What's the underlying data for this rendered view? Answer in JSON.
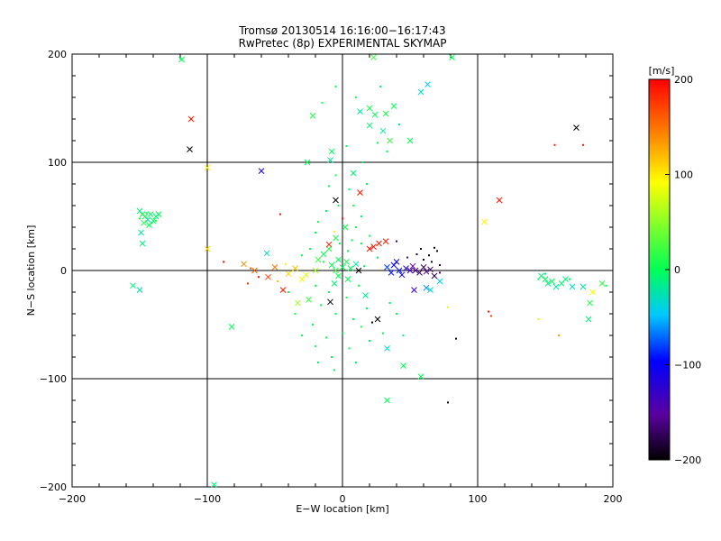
{
  "chart_data": {
    "type": "scatter",
    "title": "Tromsø 20130514  16:16:00−16:17:43",
    "subtitle": "RwPretec (8p) EXPERIMENTAL SKYMAP",
    "xlabel": "E−W location [km]",
    "ylabel": "N−S location [km]",
    "xlim": [
      -200,
      200
    ],
    "ylim": [
      -200,
      200
    ],
    "x_ticks": [
      -200,
      -100,
      0,
      100,
      200
    ],
    "y_ticks": [
      -200,
      -100,
      0,
      100,
      200
    ],
    "x_tick_labels": [
      "−200",
      "−100",
      "0",
      "100",
      "200"
    ],
    "y_tick_labels": [
      "−200",
      "−100",
      "0",
      "100",
      "200"
    ],
    "grid": true,
    "colorbar": {
      "label": "[m/s]",
      "min": -200,
      "max": 200,
      "ticks": [
        200,
        100,
        0,
        -100,
        -200
      ],
      "tick_labels": [
        "200",
        "100",
        "0",
        "−100",
        "−200"
      ],
      "colormap": [
        "#000000",
        "#5a00a0",
        "#0000ff",
        "#00c8ff",
        "#00ff55",
        "#ffff00",
        "#ff8000",
        "#ff0000"
      ]
    },
    "points": [
      {
        "x": -112,
        "y": 140,
        "v": 190,
        "m": "x"
      },
      {
        "x": -113,
        "y": 112,
        "v": -200,
        "m": "x"
      },
      {
        "x": -119,
        "y": 195,
        "v": 0,
        "m": "x"
      },
      {
        "x": -100,
        "y": 95,
        "v": 100,
        "m": "x"
      },
      {
        "x": -60,
        "y": 92,
        "v": -110,
        "m": "x"
      },
      {
        "x": -26,
        "y": 100,
        "v": 0,
        "m": "x"
      },
      {
        "x": -22,
        "y": 143,
        "v": 10,
        "m": "x"
      },
      {
        "x": 13,
        "y": 147,
        "v": -20,
        "m": "x"
      },
      {
        "x": 20,
        "y": 150,
        "v": 10,
        "m": "x"
      },
      {
        "x": 24,
        "y": 144,
        "v": 0,
        "m": "x"
      },
      {
        "x": 32,
        "y": 145,
        "v": 10,
        "m": "x"
      },
      {
        "x": 20,
        "y": 134,
        "v": -10,
        "m": "x"
      },
      {
        "x": 38,
        "y": 152,
        "v": 0,
        "m": "x"
      },
      {
        "x": 30,
        "y": 129,
        "v": -20,
        "m": "x"
      },
      {
        "x": 58,
        "y": 165,
        "v": -30,
        "m": "x"
      },
      {
        "x": 63,
        "y": 172,
        "v": -40,
        "m": "x"
      },
      {
        "x": 50,
        "y": 120,
        "v": 0,
        "m": "x"
      },
      {
        "x": 35,
        "y": 120,
        "v": 20,
        "m": "x"
      },
      {
        "x": 23,
        "y": 197,
        "v": 20,
        "m": "x"
      },
      {
        "x": 81,
        "y": 197,
        "v": 0,
        "m": "x"
      },
      {
        "x": -8,
        "y": 110,
        "v": 0,
        "m": "x"
      },
      {
        "x": -9,
        "y": 102,
        "v": -20,
        "m": "x"
      },
      {
        "x": 8,
        "y": 90,
        "v": -10,
        "m": "x"
      },
      {
        "x": -5,
        "y": 65,
        "v": -200,
        "m": "x"
      },
      {
        "x": 13,
        "y": 72,
        "v": 190,
        "m": "x"
      },
      {
        "x": 116,
        "y": 65,
        "v": 190,
        "m": "x"
      },
      {
        "x": 105,
        "y": 45,
        "v": 100,
        "m": "x"
      },
      {
        "x": 173,
        "y": 132,
        "v": -200,
        "m": "x"
      },
      {
        "x": -150,
        "y": 55,
        "v": -10,
        "m": "x"
      },
      {
        "x": -148,
        "y": 52,
        "v": 0,
        "m": "x"
      },
      {
        "x": -146,
        "y": 50,
        "v": 10,
        "m": "x"
      },
      {
        "x": -144,
        "y": 47,
        "v": -20,
        "m": "x"
      },
      {
        "x": -142,
        "y": 52,
        "v": 0,
        "m": "x"
      },
      {
        "x": -140,
        "y": 46,
        "v": 0,
        "m": "x"
      },
      {
        "x": -138,
        "y": 50,
        "v": -10,
        "m": "x"
      },
      {
        "x": -143,
        "y": 42,
        "v": 0,
        "m": "x"
      },
      {
        "x": -147,
        "y": 44,
        "v": 10,
        "m": "x"
      },
      {
        "x": -136,
        "y": 52,
        "v": 0,
        "m": "x"
      },
      {
        "x": -149,
        "y": 35,
        "v": -20,
        "m": "x"
      },
      {
        "x": -148,
        "y": 25,
        "v": -10,
        "m": "x"
      },
      {
        "x": -100,
        "y": 20,
        "v": 110,
        "m": "x"
      },
      {
        "x": -82,
        "y": -52,
        "v": 0,
        "m": "x"
      },
      {
        "x": -155,
        "y": -14,
        "v": -10,
        "m": "x"
      },
      {
        "x": -150,
        "y": -18,
        "v": -20,
        "m": "x"
      },
      {
        "x": -95,
        "y": -198,
        "v": -10,
        "m": "x"
      },
      {
        "x": -73,
        "y": 6,
        "v": 140,
        "m": "x"
      },
      {
        "x": -65,
        "y": 0,
        "v": 160,
        "m": "x"
      },
      {
        "x": -55,
        "y": -6,
        "v": 170,
        "m": "x"
      },
      {
        "x": -50,
        "y": 3,
        "v": 150,
        "m": "x"
      },
      {
        "x": -44,
        "y": -18,
        "v": 190,
        "m": "x"
      },
      {
        "x": -40,
        "y": -3,
        "v": 110,
        "m": "x"
      },
      {
        "x": -35,
        "y": 2,
        "v": 120,
        "m": "x"
      },
      {
        "x": -30,
        "y": -8,
        "v": 100,
        "m": "x"
      },
      {
        "x": -27,
        "y": -4,
        "v": 80,
        "m": "x"
      },
      {
        "x": -20,
        "y": 0,
        "v": 60,
        "m": "x"
      },
      {
        "x": -33,
        "y": -30,
        "v": 60,
        "m": "x"
      },
      {
        "x": -25,
        "y": -27,
        "v": 20,
        "m": "x"
      },
      {
        "x": -56,
        "y": 16,
        "v": -30,
        "m": "x"
      },
      {
        "x": -18,
        "y": 10,
        "v": 20,
        "m": "x"
      },
      {
        "x": -14,
        "y": 15,
        "v": 0,
        "m": "x"
      },
      {
        "x": -10,
        "y": 20,
        "v": 10,
        "m": "x"
      },
      {
        "x": -8,
        "y": 5,
        "v": 0,
        "m": "x"
      },
      {
        "x": -5,
        "y": 0,
        "v": 20,
        "m": "x"
      },
      {
        "x": -3,
        "y": 10,
        "v": 0,
        "m": "x"
      },
      {
        "x": 0,
        "y": 3,
        "v": 0,
        "m": "x"
      },
      {
        "x": 3,
        "y": 8,
        "v": 10,
        "m": "x"
      },
      {
        "x": 6,
        "y": 2,
        "v": 0,
        "m": "x"
      },
      {
        "x": 10,
        "y": 6,
        "v": -20,
        "m": "x"
      },
      {
        "x": -10,
        "y": 24,
        "v": 190,
        "m": "x"
      },
      {
        "x": -5,
        "y": 30,
        "v": 10,
        "m": "x"
      },
      {
        "x": 2,
        "y": 40,
        "v": 0,
        "m": "x"
      },
      {
        "x": -3,
        "y": -5,
        "v": 0,
        "m": "x"
      },
      {
        "x": -6,
        "y": -12,
        "v": -10,
        "m": "x"
      },
      {
        "x": 4,
        "y": -8,
        "v": 0,
        "m": "x"
      },
      {
        "x": 12,
        "y": 0,
        "v": -200,
        "m": "x"
      },
      {
        "x": -9,
        "y": -29,
        "v": -200,
        "m": "x"
      },
      {
        "x": 17,
        "y": -23,
        "v": -20,
        "m": "x"
      },
      {
        "x": 20,
        "y": 20,
        "v": 190,
        "m": "x"
      },
      {
        "x": 23,
        "y": 22,
        "v": 190,
        "m": "x"
      },
      {
        "x": 27,
        "y": 25,
        "v": 190,
        "m": "x"
      },
      {
        "x": 32,
        "y": 27,
        "v": 190,
        "m": "x"
      },
      {
        "x": 26,
        "y": -45,
        "v": -200,
        "m": "x"
      },
      {
        "x": 33,
        "y": -72,
        "v": -30,
        "m": "x"
      },
      {
        "x": 45,
        "y": -88,
        "v": 0,
        "m": "x"
      },
      {
        "x": 33,
        "y": -120,
        "v": 0,
        "m": "x"
      },
      {
        "x": 58,
        "y": -98,
        "v": 0,
        "m": "x"
      },
      {
        "x": 33,
        "y": 3,
        "v": -80,
        "m": "x"
      },
      {
        "x": 36,
        "y": -2,
        "v": -90,
        "m": "x"
      },
      {
        "x": 38,
        "y": 5,
        "v": -100,
        "m": "x"
      },
      {
        "x": 40,
        "y": 8,
        "v": -100,
        "m": "x"
      },
      {
        "x": 42,
        "y": 0,
        "v": -90,
        "m": "x"
      },
      {
        "x": 44,
        "y": -4,
        "v": -100,
        "m": "x"
      },
      {
        "x": 47,
        "y": 2,
        "v": -120,
        "m": "x"
      },
      {
        "x": 50,
        "y": 0,
        "v": -140,
        "m": "x"
      },
      {
        "x": 52,
        "y": 4,
        "v": -150,
        "m": "x"
      },
      {
        "x": 54,
        "y": 0,
        "v": -160,
        "m": "x"
      },
      {
        "x": 57,
        "y": -2,
        "v": -170,
        "m": "x"
      },
      {
        "x": 60,
        "y": 3,
        "v": -170,
        "m": "x"
      },
      {
        "x": 62,
        "y": -1,
        "v": -160,
        "m": "x"
      },
      {
        "x": 65,
        "y": 1,
        "v": -170,
        "m": "x"
      },
      {
        "x": 68,
        "y": -5,
        "v": -180,
        "m": "x"
      },
      {
        "x": 53,
        "y": -18,
        "v": -130,
        "m": "x"
      },
      {
        "x": 62,
        "y": -16,
        "v": -60,
        "m": "x"
      },
      {
        "x": 65,
        "y": -18,
        "v": -30,
        "m": "x"
      },
      {
        "x": 72,
        "y": -10,
        "v": -40,
        "m": "x"
      },
      {
        "x": 147,
        "y": -5,
        "v": -10,
        "m": "x"
      },
      {
        "x": 150,
        "y": -8,
        "v": 0,
        "m": "x"
      },
      {
        "x": 152,
        "y": -12,
        "v": -10,
        "m": "x"
      },
      {
        "x": 155,
        "y": -10,
        "v": 0,
        "m": "x"
      },
      {
        "x": 158,
        "y": -15,
        "v": -20,
        "m": "x"
      },
      {
        "x": 162,
        "y": -12,
        "v": -10,
        "m": "x"
      },
      {
        "x": 165,
        "y": -8,
        "v": -10,
        "m": "x"
      },
      {
        "x": 170,
        "y": -15,
        "v": -30,
        "m": "x"
      },
      {
        "x": 178,
        "y": -15,
        "v": -20,
        "m": "x"
      },
      {
        "x": 185,
        "y": -20,
        "v": 90,
        "m": "x"
      },
      {
        "x": 192,
        "y": -12,
        "v": 20,
        "m": "x"
      },
      {
        "x": 182,
        "y": -45,
        "v": -10,
        "m": "x"
      },
      {
        "x": 183,
        "y": -30,
        "v": 10,
        "m": "x"
      },
      {
        "x": -150,
        "y": 48,
        "v": 10,
        "m": "d"
      },
      {
        "x": -145,
        "y": 53,
        "v": 0,
        "m": "d"
      },
      {
        "x": -141,
        "y": 44,
        "v": 0,
        "m": "d"
      },
      {
        "x": -138,
        "y": 46,
        "v": 10,
        "m": "d"
      },
      {
        "x": -46,
        "y": 52,
        "v": 190,
        "m": "d"
      },
      {
        "x": -88,
        "y": 8,
        "v": 190,
        "m": "d"
      },
      {
        "x": -70,
        "y": -12,
        "v": 180,
        "m": "d"
      },
      {
        "x": -68,
        "y": 2,
        "v": 160,
        "m": "d"
      },
      {
        "x": -62,
        "y": -6,
        "v": 190,
        "m": "d"
      },
      {
        "x": -48,
        "y": -10,
        "v": 120,
        "m": "d"
      },
      {
        "x": -42,
        "y": 6,
        "v": 100,
        "m": "d"
      },
      {
        "x": -15,
        "y": 155,
        "v": 10,
        "m": "d"
      },
      {
        "x": -5,
        "y": 170,
        "v": 0,
        "m": "d"
      },
      {
        "x": 10,
        "y": 160,
        "v": 10,
        "m": "d"
      },
      {
        "x": 28,
        "y": 170,
        "v": 0,
        "m": "d"
      },
      {
        "x": 42,
        "y": 135,
        "v": -20,
        "m": "d"
      },
      {
        "x": 33,
        "y": 110,
        "v": 0,
        "m": "d"
      },
      {
        "x": 26,
        "y": 118,
        "v": 0,
        "m": "d"
      },
      {
        "x": 15,
        "y": 100,
        "v": -10,
        "m": "d"
      },
      {
        "x": 3,
        "y": 115,
        "v": 0,
        "m": "d"
      },
      {
        "x": -5,
        "y": 88,
        "v": 10,
        "m": "d"
      },
      {
        "x": 5,
        "y": 75,
        "v": -10,
        "m": "d"
      },
      {
        "x": -10,
        "y": 78,
        "v": 0,
        "m": "d"
      },
      {
        "x": 18,
        "y": 80,
        "v": 0,
        "m": "d"
      },
      {
        "x": -3,
        "y": 60,
        "v": 0,
        "m": "d"
      },
      {
        "x": 8,
        "y": 60,
        "v": 10,
        "m": "d"
      },
      {
        "x": -12,
        "y": 55,
        "v": 0,
        "m": "d"
      },
      {
        "x": 14,
        "y": 50,
        "v": 0,
        "m": "d"
      },
      {
        "x": -18,
        "y": 45,
        "v": 10,
        "m": "d"
      },
      {
        "x": 0,
        "y": 48,
        "v": 190,
        "m": "d"
      },
      {
        "x": 10,
        "y": 40,
        "v": 0,
        "m": "d"
      },
      {
        "x": -20,
        "y": 35,
        "v": 0,
        "m": "d"
      },
      {
        "x": 20,
        "y": 32,
        "v": 10,
        "m": "d"
      },
      {
        "x": -6,
        "y": 36,
        "v": 100,
        "m": "d"
      },
      {
        "x": 14,
        "y": 25,
        "v": 0,
        "m": "d"
      },
      {
        "x": -24,
        "y": 20,
        "v": 0,
        "m": "d"
      },
      {
        "x": 26,
        "y": 12,
        "v": -10,
        "m": "d"
      },
      {
        "x": -30,
        "y": 14,
        "v": 0,
        "m": "d"
      },
      {
        "x": 4,
        "y": 18,
        "v": 0,
        "m": "d"
      },
      {
        "x": -2,
        "y": 25,
        "v": 0,
        "m": "d"
      },
      {
        "x": 7,
        "y": 28,
        "v": 0,
        "m": "d"
      },
      {
        "x": -14,
        "y": 8,
        "v": 10,
        "m": "d"
      },
      {
        "x": 16,
        "y": 4,
        "v": 0,
        "m": "d"
      },
      {
        "x": -20,
        "y": -14,
        "v": 0,
        "m": "d"
      },
      {
        "x": 12,
        "y": -14,
        "v": 0,
        "m": "d"
      },
      {
        "x": -10,
        "y": -20,
        "v": 0,
        "m": "d"
      },
      {
        "x": 3,
        "y": -25,
        "v": 10,
        "m": "d"
      },
      {
        "x": -16,
        "y": -32,
        "v": 0,
        "m": "d"
      },
      {
        "x": 18,
        "y": -35,
        "v": 0,
        "m": "d"
      },
      {
        "x": -5,
        "y": -40,
        "v": 0,
        "m": "d"
      },
      {
        "x": 8,
        "y": -45,
        "v": -10,
        "m": "d"
      },
      {
        "x": -22,
        "y": -50,
        "v": 0,
        "m": "d"
      },
      {
        "x": 14,
        "y": -52,
        "v": 10,
        "m": "d"
      },
      {
        "x": 0,
        "y": -58,
        "v": 0,
        "m": "d"
      },
      {
        "x": -12,
        "y": -62,
        "v": 0,
        "m": "d"
      },
      {
        "x": 20,
        "y": -65,
        "v": 0,
        "m": "d"
      },
      {
        "x": -20,
        "y": -70,
        "v": 10,
        "m": "d"
      },
      {
        "x": 5,
        "y": -72,
        "v": 0,
        "m": "d"
      },
      {
        "x": -8,
        "y": -80,
        "v": 0,
        "m": "d"
      },
      {
        "x": 10,
        "y": -85,
        "v": 0,
        "m": "d"
      },
      {
        "x": -30,
        "y": -60,
        "v": 0,
        "m": "d"
      },
      {
        "x": 30,
        "y": -58,
        "v": 0,
        "m": "d"
      },
      {
        "x": -35,
        "y": -40,
        "v": 10,
        "m": "d"
      },
      {
        "x": 35,
        "y": -30,
        "v": 0,
        "m": "d"
      },
      {
        "x": -40,
        "y": -20,
        "v": 0,
        "m": "d"
      },
      {
        "x": 40,
        "y": -40,
        "v": 0,
        "m": "d"
      },
      {
        "x": -6,
        "y": -92,
        "v": 0,
        "m": "d"
      },
      {
        "x": -18,
        "y": -85,
        "v": 0,
        "m": "d"
      },
      {
        "x": 45,
        "y": -60,
        "v": -10,
        "m": "d"
      },
      {
        "x": 22,
        "y": -48,
        "v": -200,
        "m": "d"
      },
      {
        "x": 84,
        "y": -63,
        "v": -200,
        "m": "d"
      },
      {
        "x": 78,
        "y": -122,
        "v": -200,
        "m": "d"
      },
      {
        "x": 40,
        "y": 27,
        "v": -170,
        "m": "d"
      },
      {
        "x": 55,
        "y": 15,
        "v": -180,
        "m": "d"
      },
      {
        "x": 60,
        "y": 10,
        "v": -190,
        "m": "d"
      },
      {
        "x": 64,
        "y": 14,
        "v": -200,
        "m": "d"
      },
      {
        "x": 66,
        "y": 8,
        "v": -190,
        "m": "d"
      },
      {
        "x": 70,
        "y": 18,
        "v": -200,
        "m": "d"
      },
      {
        "x": 72,
        "y": 5,
        "v": -170,
        "m": "d"
      },
      {
        "x": 68,
        "y": 21,
        "v": -200,
        "m": "d"
      },
      {
        "x": 58,
        "y": 20,
        "v": -180,
        "m": "d"
      },
      {
        "x": 48,
        "y": 12,
        "v": -150,
        "m": "d"
      },
      {
        "x": 72,
        "y": -2,
        "v": -160,
        "m": "d"
      },
      {
        "x": 160,
        "y": -60,
        "v": 130,
        "m": "d"
      },
      {
        "x": 145,
        "y": -45,
        "v": 100,
        "m": "d"
      },
      {
        "x": 110,
        "y": -42,
        "v": 170,
        "m": "d"
      },
      {
        "x": 108,
        "y": -38,
        "v": 190,
        "m": "d"
      },
      {
        "x": 157,
        "y": 116,
        "v": 190,
        "m": "d"
      },
      {
        "x": 178,
        "y": 116,
        "v": 190,
        "m": "d"
      },
      {
        "x": 78,
        "y": -34,
        "v": 100,
        "m": "d"
      },
      {
        "x": 145,
        "y": -8,
        "v": 0,
        "m": "d"
      },
      {
        "x": 150,
        "y": -3,
        "v": -10,
        "m": "d"
      },
      {
        "x": 168,
        "y": -8,
        "v": 0,
        "m": "d"
      },
      {
        "x": 195,
        "y": -14,
        "v": 0,
        "m": "d"
      },
      {
        "x": -120,
        "y": 196,
        "v": 0,
        "m": "d"
      }
    ]
  }
}
